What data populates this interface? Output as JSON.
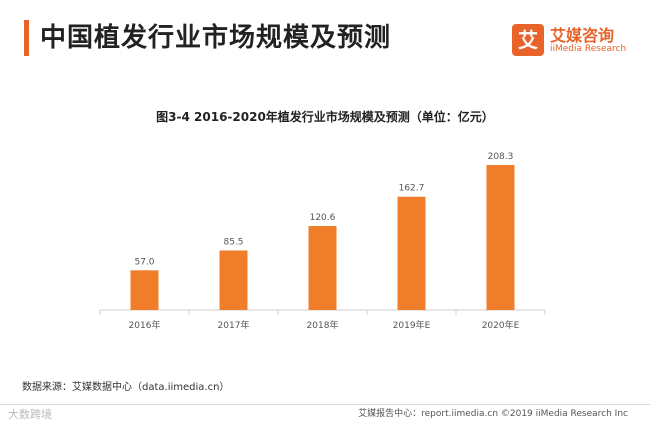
{
  "header": {
    "title": "中国植发行业市场规模及预测",
    "accent_color": "#e8632a"
  },
  "logo": {
    "mark": "艾",
    "name_cn": "艾媒咨询",
    "name_en": "iiMedia Research"
  },
  "chart_data": {
    "type": "bar",
    "title": "图3-4  2016-2020年植发行业市场规模及预测（单位：亿元）",
    "categories": [
      "2016年",
      "2017年",
      "2018年",
      "2019年E",
      "2020年E"
    ],
    "values": [
      57.0,
      85.5,
      120.6,
      162.7,
      208.3
    ],
    "value_labels": [
      "57.0",
      "85.5",
      "120.6",
      "162.7",
      "208.3"
    ],
    "ylim": [
      0,
      208.3
    ],
    "bar_color": "#f07d2a",
    "xlabel": "",
    "ylabel": ""
  },
  "source": "数据来源：艾媒数据中心（data.iimedia.cn）",
  "footer": {
    "right": "艾媒报告中心：report.iimedia.cn  ©2019  iiMedia Research  Inc",
    "left": "大数跨境"
  }
}
